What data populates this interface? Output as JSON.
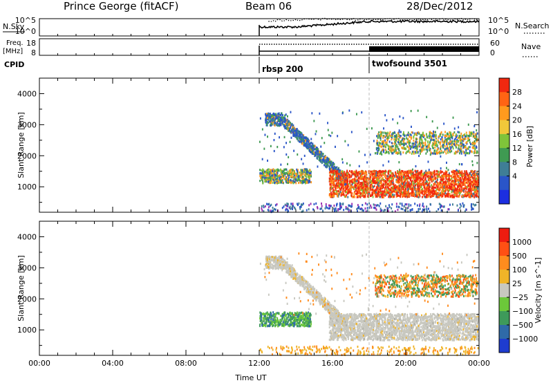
{
  "header": {
    "station": "Prince George (fitACF)",
    "beam": "Beam 06",
    "date": "28/Dec/2012"
  },
  "top_panels": {
    "nsky_label": "N.Sky",
    "nsky_ticks": [
      "10^5",
      "10^0"
    ],
    "nsearch_label": "N.Search",
    "nsearch_ticks": [
      "10^5",
      "10^0"
    ],
    "freq_label_line1": "Freq.",
    "freq_label_line2": "[MHz]",
    "freq_ticks": [
      "18",
      "8"
    ],
    "nave_label": "Nave",
    "nave_ticks": [
      "60",
      "0"
    ],
    "cpid_label": "CPID",
    "cpid_entries": [
      {
        "label": "rbsp 200",
        "start": "12:00"
      },
      {
        "label": "twofsound 3501",
        "start": "18:00"
      }
    ]
  },
  "chart_data": [
    {
      "type": "heatmap",
      "name": "power",
      "ylabel": "Slant Range [km]",
      "xlabel": "",
      "xlim": [
        "00:00",
        "24:00"
      ],
      "ylim": [
        180,
        4500
      ],
      "yticks": [
        1000,
        2000,
        3000,
        4000
      ],
      "data_span": [
        "12:00",
        "24:00"
      ],
      "colorbar": {
        "label": "Power [dB]",
        "range": [
          0,
          32
        ],
        "ticks": [
          4,
          8,
          12,
          16,
          20,
          24,
          28
        ],
        "colors": [
          "#1c2ee0",
          "#2a55c8",
          "#3f7e96",
          "#3f9a52",
          "#7fc43a",
          "#f0c83a",
          "#ff9a1e",
          "#ff6414",
          "#f02810"
        ]
      }
    },
    {
      "type": "heatmap",
      "name": "velocity",
      "ylabel": "Slant Range [km]",
      "xlabel": "Time UT",
      "xlim": [
        "00:00",
        "24:00"
      ],
      "ylim": [
        180,
        4500
      ],
      "yticks": [
        1000,
        2000,
        3000,
        4000
      ],
      "xticks": [
        "00:00",
        "04:00",
        "08:00",
        "12:00",
        "16:00",
        "20:00",
        "00:00"
      ],
      "data_span": [
        "12:00",
        "24:00"
      ],
      "colorbar": {
        "label": "Velocity [m s^-1]",
        "ticks": [
          "1000",
          "500",
          "100",
          "25",
          "−25",
          "−100",
          "−500",
          "−1000"
        ],
        "colors": [
          "#1e3ccf",
          "#2f6aa8",
          "#3e9a5a",
          "#6cc83a",
          "#c8c8c0",
          "#f0b428",
          "#ff8c1e",
          "#ff5014",
          "#ee1c10"
        ]
      }
    }
  ]
}
